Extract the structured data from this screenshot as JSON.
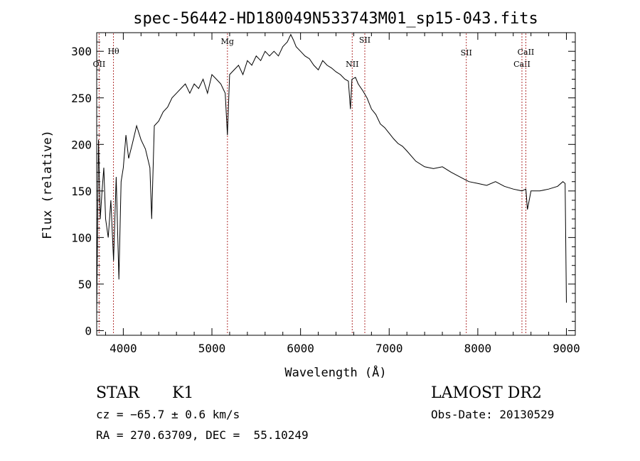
{
  "chart_data": {
    "type": "line",
    "title": "spec-56442-HD180049N533743M01_sp15-043.fits",
    "xlabel": "Wavelength (Å)",
    "ylabel": "Flux (relative)",
    "xlim": [
      3700,
      9100
    ],
    "ylim": [
      -5,
      320
    ],
    "x_ticks": [
      4000,
      5000,
      6000,
      7000,
      8000,
      9000
    ],
    "x_tick_labels": [
      "4000",
      "5000",
      "6000",
      "7000",
      "8000",
      "9000"
    ],
    "y_ticks": [
      0,
      50,
      100,
      150,
      200,
      250,
      300
    ],
    "y_tick_labels": [
      "0",
      "50",
      "100",
      "150",
      "200",
      "250",
      "300"
    ],
    "grid": false,
    "line_color": "#000000",
    "marker_color": "#b03030",
    "series": [
      {
        "x": [
          3700,
          3720,
          3740,
          3760,
          3780,
          3800,
          3830,
          3860,
          3890,
          3920,
          3950,
          3975,
          4000,
          4030,
          4060,
          4100,
          4150,
          4200,
          4250,
          4300,
          4320,
          4350,
          4400,
          4450,
          4500,
          4550,
          4600,
          4650,
          4700,
          4750,
          4800,
          4850,
          4900,
          4950,
          5000,
          5050,
          5100,
          5150,
          5175,
          5200,
          5250,
          5300,
          5350,
          5400,
          5450,
          5500,
          5550,
          5600,
          5650,
          5700,
          5750,
          5800,
          5850,
          5890,
          5920,
          5950,
          6000,
          6050,
          6100,
          6150,
          6200,
          6250,
          6300,
          6350,
          6400,
          6450,
          6500,
          6540,
          6563,
          6580,
          6620,
          6650,
          6700,
          6750,
          6800,
          6850,
          6900,
          6950,
          7000,
          7050,
          7100,
          7150,
          7200,
          7300,
          7400,
          7500,
          7600,
          7700,
          7800,
          7900,
          8000,
          8100,
          8200,
          8300,
          8400,
          8498,
          8542,
          8560,
          8600,
          8662,
          8700,
          8800,
          8900,
          8960,
          8985,
          9000
        ],
        "y": [
          20,
          205,
          120,
          150,
          175,
          120,
          100,
          140,
          75,
          165,
          55,
          160,
          175,
          210,
          185,
          200,
          220,
          205,
          195,
          175,
          120,
          220,
          225,
          235,
          240,
          250,
          255,
          260,
          265,
          255,
          265,
          260,
          270,
          255,
          275,
          270,
          265,
          255,
          210,
          275,
          280,
          285,
          275,
          290,
          285,
          295,
          290,
          300,
          295,
          300,
          295,
          305,
          310,
          318,
          312,
          305,
          300,
          295,
          292,
          285,
          280,
          290,
          285,
          282,
          278,
          275,
          270,
          268,
          238,
          270,
          272,
          265,
          258,
          250,
          238,
          232,
          222,
          218,
          212,
          206,
          201,
          198,
          193,
          182,
          176,
          174,
          176,
          170,
          165,
          160,
          158,
          156,
          160,
          155,
          152,
          150,
          152,
          130,
          150,
          150,
          150,
          152,
          155,
          160,
          158,
          30
        ]
      }
    ],
    "lines": [
      {
        "x": 3727,
        "labels": [
          "OII"
        ]
      },
      {
        "x": 3889,
        "labels": [
          "Hθ"
        ]
      },
      {
        "x": 5175,
        "labels": [
          "Mg"
        ]
      },
      {
        "x": 6583,
        "labels": [
          "NII"
        ]
      },
      {
        "x": 6725,
        "labels": [
          "SII"
        ]
      },
      {
        "x": 7870,
        "labels": [
          "SII"
        ]
      },
      {
        "x": 8498,
        "labels": [
          "CaII"
        ]
      },
      {
        "x": 8542,
        "labels": [
          "CaII"
        ]
      }
    ]
  },
  "info": {
    "class_label": "STAR",
    "subclass_label": "K1",
    "survey": "LAMOST DR2",
    "cz": "cz = −65.7 ± 0.6 km/s",
    "obs_date": "Obs-Date: 20130529",
    "coords": "RA = 270.63709, DEC =  55.10249"
  }
}
